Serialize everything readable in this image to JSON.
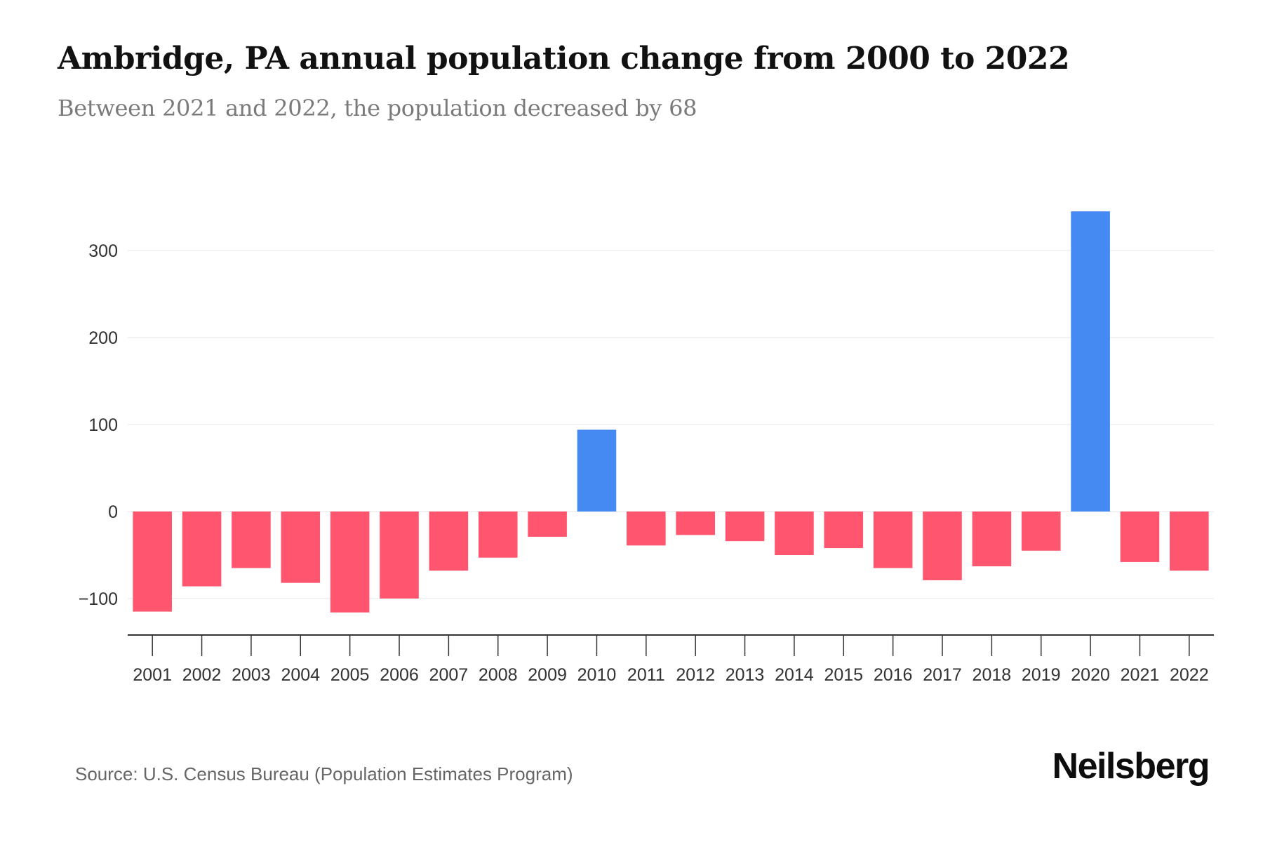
{
  "header": {
    "title": "Ambridge, PA annual population change from 2000 to 2022",
    "subtitle": "Between 2021 and 2022, the population decreased by 68"
  },
  "footer": {
    "source": "Source: U.S. Census Bureau (Population Estimates Program)",
    "logo": "Neilsberg"
  },
  "colors": {
    "positive": "#4589f3",
    "negative": "#ff556f",
    "gridline": "#eeeeee",
    "axis": "#333333"
  },
  "chart_data": {
    "type": "bar",
    "title": "Ambridge, PA annual population change from 2000 to 2022",
    "subtitle": "Between 2021 and 2022, the population decreased by 68",
    "xlabel": "",
    "ylabel": "",
    "categories": [
      "2001",
      "2002",
      "2003",
      "2004",
      "2005",
      "2006",
      "2007",
      "2008",
      "2009",
      "2010",
      "2011",
      "2012",
      "2013",
      "2014",
      "2015",
      "2016",
      "2017",
      "2018",
      "2019",
      "2020",
      "2021",
      "2022"
    ],
    "values": [
      -115,
      -86,
      -65,
      -82,
      -116,
      -100,
      -68,
      -53,
      -29,
      94,
      -39,
      -27,
      -34,
      -50,
      -42,
      -65,
      -79,
      -63,
      -45,
      345,
      -58,
      -68
    ],
    "ylim": [
      -142,
      345
    ],
    "yticks": [
      -100,
      0,
      100,
      200,
      300
    ],
    "ytick_labels": [
      "−100",
      "0",
      "100",
      "200",
      "300"
    ],
    "grid": true,
    "legend": "none",
    "source": "Source: U.S. Census Bureau (Population Estimates Program)"
  }
}
